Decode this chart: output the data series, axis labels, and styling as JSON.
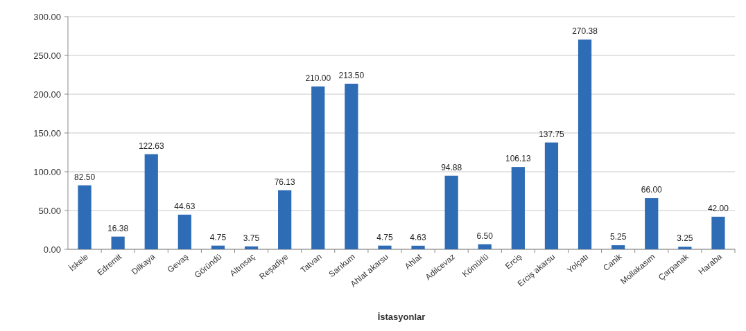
{
  "chart_data": {
    "type": "bar",
    "xlabel": "İstasyonlar",
    "categories": [
      "İskele",
      "Edremit",
      "Dilkaya",
      "Gevaş",
      "Göründü",
      "Altınsaç",
      "Reşadiye",
      "Tatvan",
      "Sarıkum",
      "Ahlat akarsu",
      "Ahlat",
      "Adilcevaz",
      "Kömürlü",
      "Erciş",
      "Erciş akarsu",
      "Yolçatı",
      "Canik",
      "Mollakasım",
      "Çarpanak",
      "Haraba"
    ],
    "values": [
      82.5,
      16.38,
      122.63,
      44.63,
      4.75,
      3.75,
      76.13,
      210,
      213.5,
      4.75,
      4.63,
      94.88,
      6.5,
      106.13,
      137.75,
      270.38,
      5.25,
      66,
      3.25,
      42
    ],
    "color": "#2e6cb5",
    "ylim": [
      0,
      300
    ],
    "yticks": [
      {
        "value": 0,
        "label": "0.00"
      },
      {
        "value": 50,
        "label": "50.00"
      },
      {
        "value": 100,
        "label": "100.00"
      },
      {
        "value": 150,
        "label": "150.00"
      },
      {
        "value": 200,
        "label": "200.00"
      },
      {
        "value": 250,
        "label": "250.00"
      },
      {
        "value": 300,
        "label": "300.00"
      }
    ],
    "value_labels": [
      "82.50",
      "16.38",
      "122.63",
      "44.63",
      "4.75",
      "3.75",
      "76.13",
      "210.00",
      "213.50",
      "4.75",
      "4.63",
      "94.88",
      "6.50",
      "106.13",
      "137.75",
      "270.38",
      "5.25",
      "66.00",
      "3.25",
      "42.00"
    ],
    "grid": "y"
  }
}
